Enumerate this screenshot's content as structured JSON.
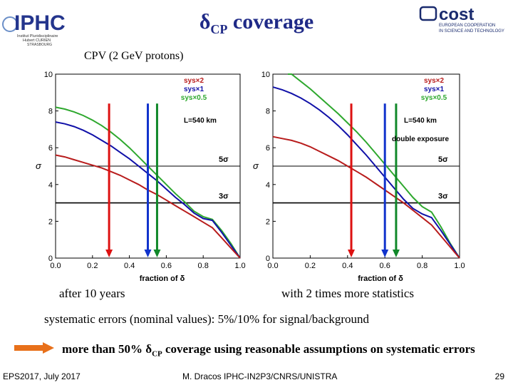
{
  "header": {
    "title_main": "δ",
    "title_sub": "CP",
    "title_rest": " coverage",
    "subtitle": "CPV (2 GeV protons)"
  },
  "logos": {
    "left_text": "IPHC",
    "left_lines": [
      "Institut Pluridisciplinaire",
      "Hubert CURIEN",
      "STRASBOURG"
    ],
    "right_text": "cost",
    "right_lines": [
      "EUROPEAN COOPERATION",
      "IN SCIENCE AND TECHNOLOGY"
    ]
  },
  "captions": {
    "left": "after 10 years",
    "right": "with 2 times more statistics",
    "systematics": "systematic errors (nominal values): 5%/10% for signal/background",
    "conclusion_pre": "more than 50% δ",
    "conclusion_sub": "CP",
    "conclusion_post": " coverage using reasonable assumptions on systematic errors"
  },
  "footer": {
    "left": "EPS2017, July 2017",
    "center": "M. Dracos IPHC-IN2P3/CNRS/UNISTRA",
    "page": "29"
  },
  "colors": {
    "red": "#b81c1c",
    "blue": "#1010a8",
    "green": "#2ea82e",
    "arrow_red": "#dd1111",
    "arrow_blue": "#1133cc",
    "arrow_green": "#11882a",
    "orange": "#e8701a",
    "title": "#1f2a87"
  },
  "chart_data": [
    {
      "type": "line",
      "xlabel": "fraction of δ",
      "ylabel": "σ",
      "xlim": [
        0,
        1
      ],
      "ylim": [
        0,
        10
      ],
      "xticks": [
        "0.0",
        "0.2",
        "0.4",
        "0.6",
        "0.8",
        "1.0"
      ],
      "yticks": [
        "0",
        "2",
        "4",
        "6",
        "8",
        "10"
      ],
      "legend": [
        "sys×2",
        "sys×1",
        "sys×0.5"
      ],
      "annotations": [
        "L=540 km"
      ],
      "hlines": [
        {
          "y": 5,
          "label": "5σ"
        },
        {
          "y": 3,
          "label": "3σ"
        }
      ],
      "vertical_arrows": [
        {
          "x": 0.29,
          "color": "red"
        },
        {
          "x": 0.5,
          "color": "blue"
        },
        {
          "x": 0.55,
          "color": "green"
        }
      ],
      "series": [
        {
          "name": "sys×0.5",
          "color": "green",
          "x": [
            0,
            0.05,
            0.1,
            0.15,
            0.2,
            0.25,
            0.3,
            0.35,
            0.4,
            0.45,
            0.5,
            0.55,
            0.6,
            0.65,
            0.7,
            0.75,
            0.8,
            0.85,
            0.9,
            0.95,
            1.0
          ],
          "y": [
            8.2,
            8.1,
            7.95,
            7.75,
            7.5,
            7.2,
            6.85,
            6.45,
            6.0,
            5.5,
            5.0,
            4.5,
            4.0,
            3.5,
            3.05,
            2.55,
            2.25,
            2.1,
            1.5,
            0.8,
            0
          ]
        },
        {
          "name": "sys×1",
          "color": "blue",
          "x": [
            0,
            0.05,
            0.1,
            0.15,
            0.2,
            0.25,
            0.3,
            0.35,
            0.4,
            0.45,
            0.5,
            0.55,
            0.6,
            0.65,
            0.7,
            0.75,
            0.8,
            0.85,
            0.9,
            0.95,
            1.0
          ],
          "y": [
            7.4,
            7.3,
            7.15,
            6.95,
            6.7,
            6.4,
            6.1,
            5.75,
            5.4,
            5.0,
            4.6,
            4.2,
            3.75,
            3.3,
            2.9,
            2.45,
            2.15,
            2.05,
            1.4,
            0.7,
            0
          ]
        },
        {
          "name": "sys×2",
          "color": "red",
          "x": [
            0,
            0.05,
            0.1,
            0.15,
            0.2,
            0.25,
            0.3,
            0.35,
            0.4,
            0.45,
            0.5,
            0.55,
            0.6,
            0.65,
            0.7,
            0.75,
            0.8,
            0.85,
            0.9,
            0.95,
            1.0
          ],
          "y": [
            5.6,
            5.5,
            5.35,
            5.2,
            5.05,
            4.9,
            4.7,
            4.5,
            4.25,
            4.0,
            3.7,
            3.45,
            3.15,
            2.85,
            2.55,
            2.25,
            1.95,
            1.65,
            1.1,
            0.55,
            0
          ]
        }
      ]
    },
    {
      "type": "line",
      "xlabel": "fraction of δ",
      "ylabel": "σ",
      "xlim": [
        0,
        1
      ],
      "ylim": [
        0,
        10
      ],
      "xticks": [
        "0.0",
        "0.2",
        "0.4",
        "0.6",
        "0.8",
        "1.0"
      ],
      "yticks": [
        "0",
        "2",
        "4",
        "6",
        "8",
        "10"
      ],
      "legend": [
        "sys×2",
        "sys×1",
        "sys×0.5"
      ],
      "annotations": [
        "L=540 km",
        "double exposure"
      ],
      "hlines": [
        {
          "y": 5,
          "label": "5σ"
        },
        {
          "y": 3,
          "label": "3σ"
        }
      ],
      "vertical_arrows": [
        {
          "x": 0.42,
          "color": "red"
        },
        {
          "x": 0.6,
          "color": "blue"
        },
        {
          "x": 0.66,
          "color": "green"
        }
      ],
      "series": [
        {
          "name": "sys×0.5",
          "color": "green",
          "x": [
            0.08,
            0.1,
            0.15,
            0.2,
            0.25,
            0.3,
            0.35,
            0.4,
            0.45,
            0.5,
            0.55,
            0.6,
            0.65,
            0.7,
            0.75,
            0.8,
            0.85,
            0.9,
            0.95,
            1.0
          ],
          "y": [
            10.2,
            10.0,
            9.6,
            9.2,
            8.75,
            8.3,
            7.85,
            7.35,
            6.85,
            6.3,
            5.7,
            5.1,
            4.5,
            3.9,
            3.3,
            2.8,
            2.5,
            1.7,
            0.8,
            0
          ]
        },
        {
          "name": "sys×1",
          "color": "blue",
          "x": [
            0,
            0.05,
            0.1,
            0.15,
            0.2,
            0.25,
            0.3,
            0.35,
            0.4,
            0.45,
            0.5,
            0.55,
            0.6,
            0.65,
            0.7,
            0.75,
            0.8,
            0.85,
            0.9,
            0.95,
            1.0
          ],
          "y": [
            9.3,
            9.15,
            8.95,
            8.7,
            8.4,
            8.05,
            7.65,
            7.2,
            6.7,
            6.15,
            5.6,
            5.0,
            4.4,
            3.8,
            3.2,
            2.7,
            2.4,
            2.2,
            1.5,
            0.75,
            0
          ]
        },
        {
          "name": "sys×2",
          "color": "red",
          "x": [
            0,
            0.05,
            0.1,
            0.15,
            0.2,
            0.25,
            0.3,
            0.35,
            0.4,
            0.45,
            0.5,
            0.55,
            0.6,
            0.65,
            0.7,
            0.75,
            0.8,
            0.85,
            0.9,
            0.95,
            1.0
          ],
          "y": [
            6.6,
            6.5,
            6.4,
            6.25,
            6.05,
            5.8,
            5.55,
            5.3,
            5.0,
            4.7,
            4.4,
            4.05,
            3.7,
            3.35,
            3.0,
            2.6,
            2.2,
            1.8,
            1.2,
            0.6,
            0
          ]
        }
      ]
    }
  ]
}
